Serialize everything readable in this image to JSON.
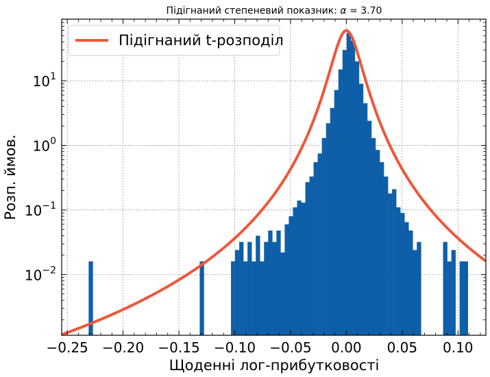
{
  "chart_data": {
    "type": "bar",
    "title_prefix": "Підігнаний степеневий показник: ",
    "title_symbol": "α",
    "title_value": " = 3.70",
    "xlabel": "Щоденні лог-прибутковості",
    "ylabel": "Розп. ймов.",
    "xlim": [
      -0.255,
      0.125
    ],
    "ylog": true,
    "ylim": [
      0.00115,
      90
    ],
    "grid": true,
    "legend_position": "top-left",
    "x_ticks": [
      -0.25,
      -0.2,
      -0.15,
      -0.1,
      -0.05,
      0.0,
      0.05,
      0.1
    ],
    "x_tick_labels": [
      "−0.25",
      "−0.20",
      "−0.15",
      "−0.10",
      "−0.05",
      "0.00",
      "0.05",
      "0.10"
    ],
    "y_ticks": [
      {
        "value": 10,
        "base": "10",
        "exp": "1"
      },
      {
        "value": 1,
        "base": "10",
        "exp": "0"
      },
      {
        "value": 0.1,
        "base": "10",
        "exp": "−1"
      },
      {
        "value": 0.01,
        "base": "10",
        "exp": "−2"
      }
    ],
    "histogram": {
      "color": "#0f5fa8",
      "bin_width": 0.0037,
      "bins": [
        [
          -0.229,
          0.016
        ],
        [
          -0.1295,
          0.016
        ],
        [
          -0.1015,
          0.016
        ],
        [
          -0.0978,
          0.024
        ],
        [
          -0.0941,
          0.032
        ],
        [
          -0.0904,
          0.016
        ],
        [
          -0.0867,
          0.032
        ],
        [
          -0.083,
          0.016
        ],
        [
          -0.0793,
          0.04
        ],
        [
          -0.0756,
          0.016
        ],
        [
          -0.0719,
          0.032
        ],
        [
          -0.0682,
          0.048
        ],
        [
          -0.0645,
          0.032
        ],
        [
          -0.0608,
          0.048
        ],
        [
          -0.0571,
          0.022
        ],
        [
          -0.0534,
          0.06
        ],
        [
          -0.0497,
          0.08
        ],
        [
          -0.046,
          0.11
        ],
        [
          -0.0423,
          0.14
        ],
        [
          -0.0386,
          0.13
        ],
        [
          -0.0349,
          0.27
        ],
        [
          -0.0312,
          0.33
        ],
        [
          -0.0275,
          0.55
        ],
        [
          -0.0238,
          0.75
        ],
        [
          -0.0201,
          1.3
        ],
        [
          -0.0164,
          2.2
        ],
        [
          -0.0127,
          3.8
        ],
        [
          -0.009,
          7.2
        ],
        [
          -0.0053,
          15
        ],
        [
          -0.0016,
          30
        ],
        [
          0.0021,
          55
        ],
        [
          0.0058,
          42
        ],
        [
          0.0095,
          20
        ],
        [
          0.0132,
          9
        ],
        [
          0.0169,
          4.5
        ],
        [
          0.0206,
          2.4
        ],
        [
          0.0243,
          1.3
        ],
        [
          0.028,
          0.85
        ],
        [
          0.0317,
          0.55
        ],
        [
          0.0354,
          0.33
        ],
        [
          0.0391,
          0.18
        ],
        [
          0.0428,
          0.21
        ],
        [
          0.0465,
          0.11
        ],
        [
          0.0502,
          0.09
        ],
        [
          0.0539,
          0.065
        ],
        [
          0.0576,
          0.048
        ],
        [
          0.0613,
          0.024
        ],
        [
          0.065,
          0.032
        ],
        [
          0.0885,
          0.032
        ],
        [
          0.0922,
          0.016
        ],
        [
          0.0959,
          0.024
        ],
        [
          0.1033,
          0.016
        ],
        [
          0.107,
          0.016
        ]
      ]
    },
    "fit": {
      "name": "Підігнаний t-розподіл",
      "color": "#f0563a",
      "peak": 60,
      "scale": 0.0083,
      "nu": 2.7
    }
  }
}
